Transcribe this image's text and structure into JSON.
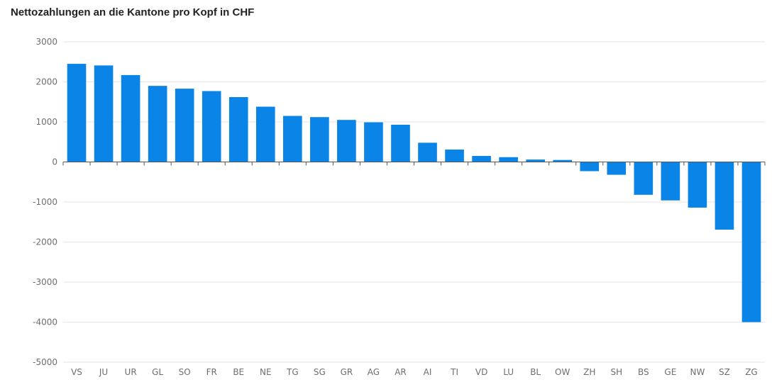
{
  "chart_data": {
    "type": "bar",
    "title": "Nettozahlungen an die Kantone pro Kopf in CHF",
    "xlabel": "",
    "ylabel": "",
    "categories": [
      "VS",
      "JU",
      "UR",
      "GL",
      "SO",
      "FR",
      "BE",
      "NE",
      "TG",
      "SG",
      "GR",
      "AG",
      "AR",
      "AI",
      "TI",
      "VD",
      "LU",
      "BL",
      "OW",
      "ZH",
      "SH",
      "BS",
      "GE",
      "NW",
      "SZ",
      "ZG"
    ],
    "values": [
      2450,
      2410,
      2170,
      1900,
      1830,
      1770,
      1620,
      1380,
      1150,
      1120,
      1050,
      990,
      930,
      480,
      310,
      150,
      120,
      60,
      50,
      -230,
      -320,
      -820,
      -960,
      -1140,
      -1690,
      -4000
    ],
    "ylim": [
      -5000,
      3000
    ],
    "yticks": [
      3000,
      2000,
      1000,
      0,
      -1000,
      -2000,
      -3000,
      -4000,
      -5000
    ],
    "grid": true,
    "legend": "none",
    "bar_color": "#0a84e6"
  }
}
